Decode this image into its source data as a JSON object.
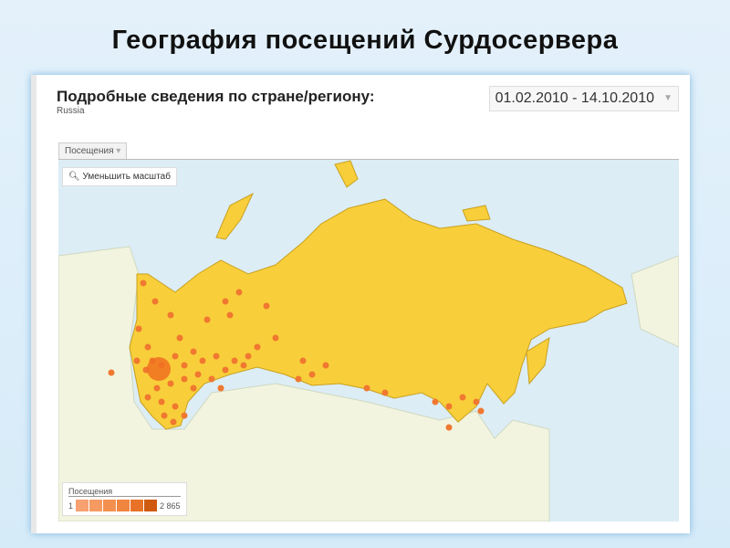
{
  "title": "География посещений Сурдосервера",
  "heading": "Подробные сведения по стране/региону:",
  "country": "Russia",
  "date_range": "01.02.2010 - 14.10.2010",
  "metric_tab": "Посещения",
  "zoom_out": "Уменьшить масштаб",
  "legend": {
    "title": "Посещения",
    "min": "1",
    "max": "2 865",
    "colors": [
      "#f7a070",
      "#f59a60",
      "#f39050",
      "#f08540",
      "#e87328",
      "#d05a10"
    ]
  },
  "colors": {
    "region": "#f8cf3a",
    "water": "#dcedf5",
    "land": "#f2f4e0",
    "dot": "#f07830"
  }
}
